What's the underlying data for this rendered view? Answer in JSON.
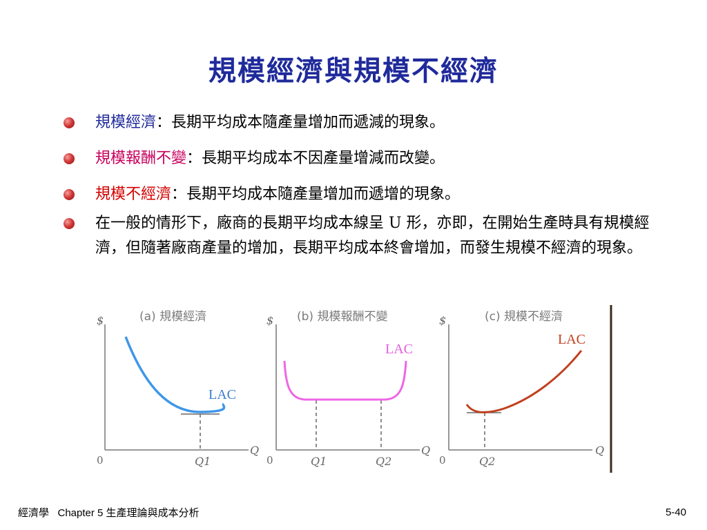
{
  "slide": {
    "title": "規模經濟與規模不經濟"
  },
  "bullets": [
    {
      "keyword": "規模經濟",
      "text": "：長期平均成本隨產量增加而遞減的現象。",
      "keyword_color": "#1f2a9b"
    },
    {
      "keyword": "規模報酬不變",
      "text": "：長期平均成本不因產量增減而改變。",
      "keyword_color": "#c8005c"
    },
    {
      "keyword": "規模不經濟",
      "text": "：長期平均成本隨產量增加而遞增的現象。",
      "keyword_color": "#d40000"
    },
    {
      "text": "在一般的情形下，廠商的長期平均成本線呈 U 形，亦即，在開始生產時具有規模經濟，但隨著廠商產量的增加，長期平均成本終會增加，而發生規模不經濟的現象。"
    }
  ],
  "chart_data": [
    {
      "type": "line",
      "title": "(a) 規模經濟",
      "ylabel": "$",
      "xlabel": "Q",
      "origin_label": "0",
      "tick_labels": [
        "Q1"
      ],
      "series": [
        {
          "name": "LAC",
          "color": "#3f97e8"
        }
      ]
    },
    {
      "type": "line",
      "title": "(b) 規模報酬不變",
      "ylabel": "$",
      "xlabel": "Q",
      "origin_label": "0",
      "tick_labels": [
        "Q1",
        "Q2"
      ],
      "series": [
        {
          "name": "LAC",
          "color": "#ee66e6"
        }
      ]
    },
    {
      "type": "line",
      "title": "(c) 規模不經濟",
      "ylabel": "$",
      "xlabel": "Q",
      "origin_label": "0",
      "tick_labels": [
        "Q2"
      ],
      "series": [
        {
          "name": "LAC",
          "color": "#c1401e"
        }
      ]
    }
  ],
  "footer": {
    "left": "經濟學   Chapter 5 生產理論與成本分析",
    "right": "5-40"
  }
}
